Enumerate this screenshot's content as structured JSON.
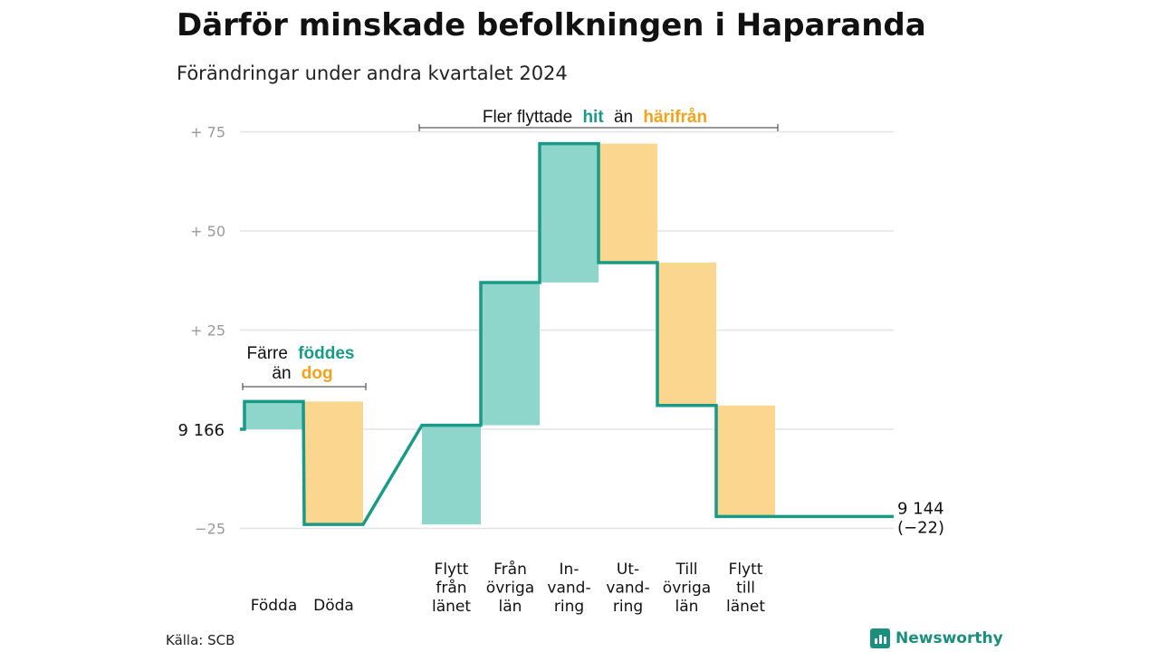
{
  "title": "Därför minskade befolkningen i Haparanda",
  "subtitle": "Förändringar under andra kvartalet 2024",
  "source": "Källa: SCB",
  "logo_text": "Newsworthy",
  "colors": {
    "inflow": "#8ed6cc",
    "outflow": "#fad68e",
    "line": "#1a9a86",
    "green_text": "#1a9a86",
    "orange_text": "#f3a21c",
    "grid": "#e3e3e3"
  },
  "annotations": {
    "migration": {
      "prefix": "Fler flyttade",
      "highlight1": "hit",
      "mid": "än",
      "highlight2": "härifrån"
    },
    "births": {
      "line1_prefix": "Färre",
      "line1_highlight": "föddes",
      "line2_prefix": "än",
      "line2_highlight": "dog"
    }
  },
  "chart_data": {
    "type": "waterfall",
    "start_value": 9166,
    "start_label": "9 166",
    "end_value": 9144,
    "end_label": "9 144",
    "end_change_label": "(−22)",
    "ylim": [
      -30,
      80
    ],
    "yticks": [
      {
        "value": 75,
        "label": "+  75"
      },
      {
        "value": 50,
        "label": "+  50"
      },
      {
        "value": 25,
        "label": "+  25"
      },
      {
        "value": -25,
        "label": "−25"
      }
    ],
    "steps": [
      {
        "group": "Födda Döda",
        "category": [
          "Födda"
        ],
        "direction": "in",
        "value": 7
      },
      {
        "group": "Födda Döda",
        "category": [
          "Döda"
        ],
        "direction": "out",
        "value": 31
      },
      {
        "group": "Flytt",
        "category": [
          "Flytt",
          "från",
          "länet"
        ],
        "direction": "in",
        "value": 25
      },
      {
        "group": "Flytt",
        "category": [
          "Från",
          "övriga",
          "län"
        ],
        "direction": "in",
        "value": 36
      },
      {
        "group": "Flytt",
        "category": [
          "In-",
          "vand-",
          "ring"
        ],
        "direction": "in",
        "value": 35
      },
      {
        "group": "Flytt",
        "category": [
          "Ut-",
          "vand-",
          "ring"
        ],
        "direction": "out",
        "value": 30
      },
      {
        "group": "Flytt",
        "category": [
          "Till",
          "övriga",
          "län"
        ],
        "direction": "out",
        "value": 36
      },
      {
        "group": "Flytt",
        "category": [
          "Flytt",
          "till",
          "länet"
        ],
        "direction": "out",
        "value": 28
      }
    ]
  }
}
